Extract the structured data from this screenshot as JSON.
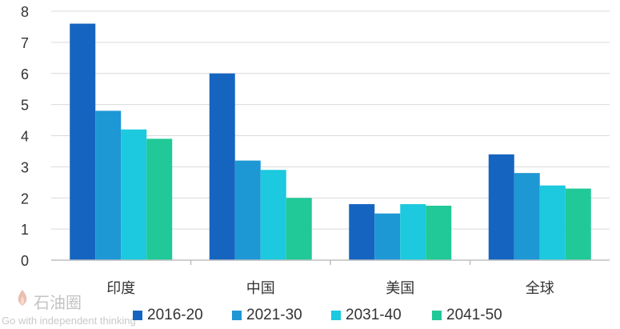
{
  "chart_data": {
    "type": "bar",
    "categories": [
      "印度",
      "中国",
      "美国",
      "全球"
    ],
    "series": [
      {
        "name": "2016-20",
        "values": [
          7.6,
          6.0,
          1.8,
          3.4
        ]
      },
      {
        "name": "2021-30",
        "values": [
          4.8,
          3.2,
          1.5,
          2.8
        ]
      },
      {
        "name": "2031-40",
        "values": [
          4.2,
          2.9,
          1.8,
          2.4
        ]
      },
      {
        "name": "2041-50",
        "values": [
          3.9,
          2.0,
          1.75,
          2.3
        ]
      }
    ],
    "title": "",
    "xlabel": "",
    "ylabel": "",
    "ylim": [
      0,
      8
    ],
    "yticks": [
      "0",
      "1",
      "2",
      "3",
      "4",
      "5",
      "6",
      "7",
      "8"
    ],
    "grid": true,
    "legend_position": "bottom",
    "colors": [
      "#1565C0",
      "#1E97D5",
      "#1CC9DE",
      "#20C997"
    ]
  },
  "watermark": {
    "text": "石油圈",
    "subtext": "Go with independent thinking"
  }
}
